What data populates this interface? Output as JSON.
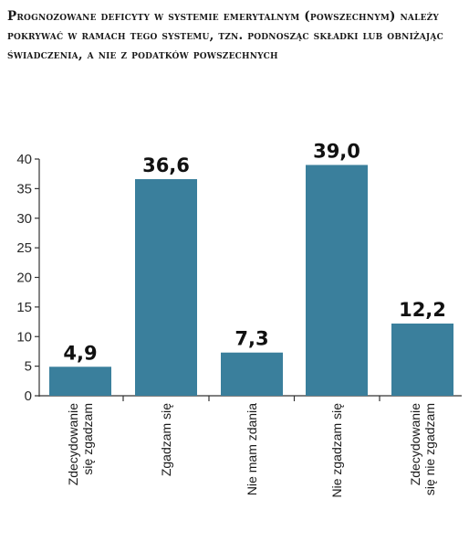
{
  "chart_data": {
    "type": "bar",
    "title": "Prognozowane deficyty w systemie emerytalnym (powszechnym) należy pokrywać w ramach tego systemu, tzn. podnosząc składki lub obniżając świadczenia, a nie z podatków powszechnych",
    "categories": [
      [
        "Zdecydowanie",
        "się zgadzam"
      ],
      [
        "Zgadzam się"
      ],
      [
        "Nie mam zdania"
      ],
      [
        "Nie zgadzam się"
      ],
      [
        "Zdecydowanie",
        "się nie zgadzam"
      ]
    ],
    "values": [
      4.9,
      36.6,
      7.3,
      39.0,
      12.2
    ],
    "value_labels": [
      "4,9",
      "36,6",
      "7,3",
      "39,0",
      "12,2"
    ],
    "ylim": [
      0,
      40
    ],
    "yticks": [
      0,
      5,
      10,
      15,
      20,
      25,
      30,
      35,
      40
    ],
    "bar_color": "#3a7f9c",
    "xlabel": "",
    "ylabel": "",
    "grid": false
  }
}
